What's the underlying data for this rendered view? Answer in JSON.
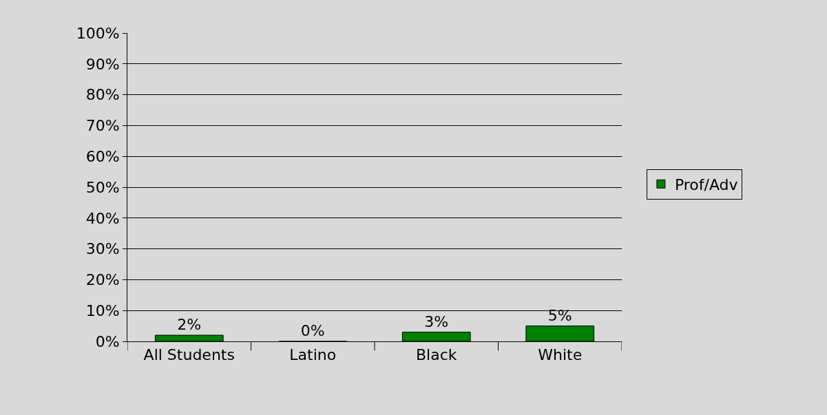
{
  "chart_data": {
    "type": "bar",
    "categories": [
      "All Students",
      "Latino",
      "Black",
      "White"
    ],
    "series": [
      {
        "name": "Prof/Adv",
        "color": "#008000",
        "values": [
          2,
          0,
          3,
          5
        ],
        "value_labels": [
          "2%",
          "0%",
          "3%",
          "5%"
        ]
      }
    ],
    "ylim": [
      0,
      100
    ],
    "yticks": [
      {
        "value": 0,
        "label": "0%"
      },
      {
        "value": 10,
        "label": "10%"
      },
      {
        "value": 20,
        "label": "20%"
      },
      {
        "value": 30,
        "label": "30%"
      },
      {
        "value": 40,
        "label": "40%"
      },
      {
        "value": 50,
        "label": "50%"
      },
      {
        "value": 60,
        "label": "60%"
      },
      {
        "value": 70,
        "label": "70%"
      },
      {
        "value": 80,
        "label": "80%"
      },
      {
        "value": 90,
        "label": "90%"
      },
      {
        "value": 100,
        "label": "100%"
      }
    ],
    "grid": "y",
    "legend": "right"
  }
}
